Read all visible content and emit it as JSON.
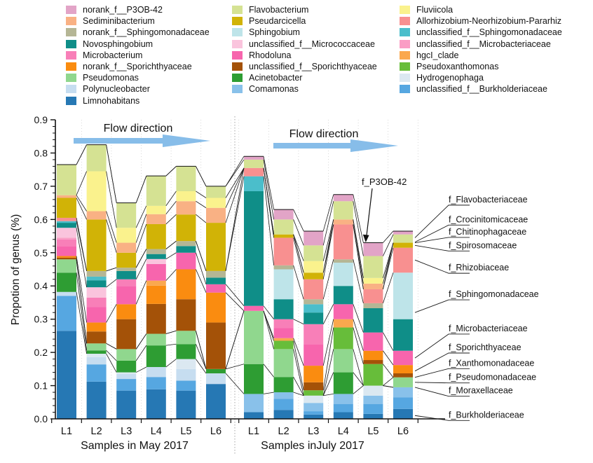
{
  "legend": {
    "columns": [
      {
        "items": [
          {
            "name": "norank_f__P3OB-42",
            "color": "#e2a4c7"
          },
          {
            "name": "Sediminibacterium",
            "color": "#f9b184"
          },
          {
            "name": "norank_f__Sphingomonadaceae",
            "color": "#b5b695"
          },
          {
            "name": "Novosphingobium",
            "color": "#0f8e88"
          },
          {
            "name": "Microbacterium",
            "color": "#f87fb8"
          },
          {
            "name": "norank_f__Sporichthyaceae",
            "color": "#fa8c10"
          },
          {
            "name": "Pseudomonas",
            "color": "#90d78e"
          },
          {
            "name": "Polynucleobacter",
            "color": "#c6ddf0"
          },
          {
            "name": "Limnohabitans",
            "color": "#2678b4"
          }
        ]
      },
      {
        "items": [
          {
            "name": "Flavobacterium",
            "color": "#d5e293"
          },
          {
            "name": "Pseudarcicella",
            "color": "#d1b306"
          },
          {
            "name": "Sphingobium",
            "color": "#bee4e9"
          },
          {
            "name": "unclassified_f__Micrococcaceae",
            "color": "#fac4dd"
          },
          {
            "name": "Rhodoluna",
            "color": "#f765ad"
          },
          {
            "name": "unclassified_f__Sporichthyaceae",
            "color": "#a45208"
          },
          {
            "name": "Acinetobacter",
            "color": "#2e9d33"
          },
          {
            "name": "Comamonas",
            "color": "#89c1ea"
          }
        ]
      },
      {
        "items": [
          {
            "name": "Fluviicola",
            "color": "#faf28d"
          },
          {
            "name": "Allorhizobium-Neorhizobium-Pararhiz",
            "color": "#f89090"
          },
          {
            "name": "unclassified_f__Sphingomonadaceae",
            "color": "#4bbecb"
          },
          {
            "name": "unclassified_f__Microbacteriaceae",
            "color": "#fa9dc5"
          },
          {
            "name": "hgcI_clade",
            "color": "#faa84e"
          },
          {
            "name": "Pseudoxanthomonas",
            "color": "#67bd3a"
          },
          {
            "name": "Hydrogenophaga",
            "color": "#dbe8f1"
          },
          {
            "name": "unclassified_f__Burkholderiaceae",
            "color": "#56a7e1"
          }
        ]
      }
    ]
  },
  "chart_data": {
    "type": "bar",
    "subtype": "stacked-vertical",
    "ylabel": "Propotion of genus (%)",
    "ylim": [
      0,
      0.9
    ],
    "ytick_step": 0.1,
    "ytick_labels": [
      "0.0",
      "0.1",
      "0.2",
      "0.3",
      "0.4",
      "0.5",
      "0.6",
      "0.7",
      "0.8",
      "0.9"
    ],
    "flow_label": "Flow direction",
    "annotation": {
      "text": "f_P3OB-42"
    },
    "groups": [
      {
        "caption": "Samples in May 2017",
        "categories": [
          "L1",
          "L2",
          "L3",
          "L4",
          "L5",
          "L6"
        ]
      },
      {
        "caption": "Samples inJuly 2017",
        "categories": [
          "L1",
          "L2",
          "L3",
          "L4",
          "L5",
          "L6"
        ]
      }
    ],
    "families": [
      {
        "name": "f_Burkholderiaceae",
        "genera": [
          "Limnohabitans",
          "unclassified_f__Burkholderiaceae",
          "Comamonas",
          "Polynucleobacter",
          "Hydrogenophaga"
        ]
      },
      {
        "name": "f_Moraxellaceae",
        "genera": [
          "Acinetobacter"
        ]
      },
      {
        "name": "f_Pseudomonadaceae",
        "genera": [
          "Pseudomonas"
        ]
      },
      {
        "name": "f_Xanthomonadaceae",
        "genera": [
          "Pseudoxanthomonas"
        ]
      },
      {
        "name": "f_Sporichthyaceae",
        "genera": [
          "unclassified_f__Sporichthyaceae",
          "norank_f__Sporichthyaceae",
          "hgcI_clade"
        ]
      },
      {
        "name": "f_Microbacteriaceae",
        "genera": [
          "Rhodoluna",
          "Microbacterium",
          "unclassified_f__Microbacteriaceae",
          "unclassified_f__Micrococcaceae"
        ]
      },
      {
        "name": "f_Sphingomonadaceae",
        "genera": [
          "Novosphingobium",
          "unclassified_f__Sphingomonadaceae",
          "Sphingobium",
          "norank_f__Sphingomonadaceae"
        ]
      },
      {
        "name": "f_Rhizobiaceae",
        "genera": [
          "Allorhizobium-Neorhizobium-Pararhiz"
        ]
      },
      {
        "name": "f_Spirosomaceae",
        "genera": [
          "Pseudarcicella"
        ]
      },
      {
        "name": "f_Chitinophagaceae",
        "genera": [
          "Sediminibacterium"
        ]
      },
      {
        "name": "f_Crocinitomicaceae",
        "genera": [
          "Fluviicola"
        ]
      },
      {
        "name": "f_Flavobacteriaceae",
        "genera": [
          "Flavobacterium"
        ]
      },
      {
        "name": "f_P3OB-42",
        "genera": [
          "norank_f__P3OB-42"
        ]
      }
    ],
    "genera_colors": {
      "Limnohabitans": "#2678b4",
      "unclassified_f__Burkholderiaceae": "#56a7e1",
      "Comamonas": "#89c1ea",
      "Polynucleobacter": "#c6ddf0",
      "Hydrogenophaga": "#dbe8f1",
      "Acinetobacter": "#2e9d33",
      "Pseudomonas": "#90d78e",
      "Pseudoxanthomonas": "#67bd3a",
      "unclassified_f__Sporichthyaceae": "#a45208",
      "norank_f__Sporichthyaceae": "#fa8c10",
      "hgcI_clade": "#faa84e",
      "Rhodoluna": "#f765ad",
      "Microbacterium": "#f87fb8",
      "unclassified_f__Microbacteriaceae": "#fa9dc5",
      "unclassified_f__Micrococcaceae": "#fac4dd",
      "Novosphingobium": "#0f8e88",
      "unclassified_f__Sphingomonadaceae": "#4bbecb",
      "Sphingobium": "#bee4e9",
      "norank_f__Sphingomonadaceae": "#b5b695",
      "Allorhizobium-Neorhizobium-Pararhiz": "#f89090",
      "Pseudarcicella": "#d1b306",
      "Sediminibacterium": "#f9b184",
      "Fluviicola": "#faf28d",
      "Flavobacterium": "#d5e293",
      "norank_f__P3OB-42": "#e2a4c7"
    },
    "bars": [
      {
        "group": 0,
        "sample": "L1",
        "segments": {
          "Limnohabitans": 0.265,
          "unclassified_f__Burkholderiaceae": 0.105,
          "Polynucleobacter": 0.012,
          "Acinetobacter": 0.058,
          "Pseudomonas": 0.04,
          "unclassified_f__Sporichthyaceae": 0.005,
          "norank_f__Sporichthyaceae": 0.005,
          "Rhodoluna": 0.03,
          "Microbacterium": 0.02,
          "unclassified_f__Microbacteriaceae": 0.005,
          "unclassified_f__Micrococcaceae": 0.03,
          "Novosphingobium": 0.015,
          "unclassified_f__Sphingomonadaceae": 0.005,
          "Allorhizobium-Neorhizobium-Pararhiz": 0.01,
          "Pseudarcicella": 0.06,
          "Sediminibacterium": 0.008,
          "Flavobacterium": 0.092
        }
      },
      {
        "group": 0,
        "sample": "L2",
        "segments": {
          "Limnohabitans": 0.112,
          "unclassified_f__Burkholderiaceae": 0.052,
          "Polynucleobacter": 0.022,
          "Hydrogenophaga": 0.01,
          "Acinetobacter": 0.01,
          "Pseudomonas": 0.021,
          "unclassified_f__Sporichthyaceae": 0.036,
          "norank_f__Sporichthyaceae": 0.027,
          "Rhodoluna": 0.047,
          "Microbacterium": 0.028,
          "unclassified_f__Micrococcaceae": 0.031,
          "Novosphingobium": 0.021,
          "unclassified_f__Sphingomonadaceae": 0.011,
          "norank_f__Sphingomonadaceae": 0.017,
          "Pseudarcicella": 0.155,
          "Sediminibacterium": 0.025,
          "Fluviicola": 0.12,
          "Flavobacterium": 0.08
        }
      },
      {
        "group": 0,
        "sample": "L3",
        "segments": {
          "Limnohabitans": 0.085,
          "unclassified_f__Burkholderiaceae": 0.035,
          "Polynucleobacter": 0.015,
          "Hydrogenophaga": 0.005,
          "Acinetobacter": 0.035,
          "Pseudomonas": 0.035,
          "unclassified_f__Sporichthyaceae": 0.09,
          "norank_f__Sporichthyaceae": 0.045,
          "Rhodoluna": 0.055,
          "Microbacterium": 0.02,
          "Novosphingobium": 0.025,
          "norank_f__Sphingomonadaceae": 0.01,
          "Pseudarcicella": 0.045,
          "Sediminibacterium": 0.03,
          "Fluviicola": 0.045,
          "Flavobacterium": 0.075
        }
      },
      {
        "group": 0,
        "sample": "L4",
        "segments": {
          "Limnohabitans": 0.089,
          "unclassified_f__Burkholderiaceae": 0.037,
          "Polynucleobacter": 0.03,
          "Acinetobacter": 0.065,
          "Pseudomonas": 0.035,
          "unclassified_f__Sporichthyaceae": 0.09,
          "norank_f__Sporichthyaceae": 0.055,
          "hgcI_clade": 0.015,
          "Rhodoluna": 0.05,
          "unclassified_f__Micrococcaceae": 0.015,
          "Novosphingobium": 0.015,
          "norank_f__Sphingomonadaceae": 0.015,
          "Pseudarcicella": 0.075,
          "Sediminibacterium": 0.03,
          "Fluviicola": 0.025,
          "Flavobacterium": 0.09
        }
      },
      {
        "group": 0,
        "sample": "L5",
        "segments": {
          "Limnohabitans": 0.085,
          "unclassified_f__Burkholderiaceae": 0.03,
          "Polynucleobacter": 0.035,
          "Hydrogenophaga": 0.03,
          "Acinetobacter": 0.045,
          "Pseudomonas": 0.04,
          "unclassified_f__Sporichthyaceae": 0.095,
          "norank_f__Sporichthyaceae": 0.09,
          "Rhodoluna": 0.05,
          "Novosphingobium": 0.02,
          "norank_f__Sphingomonadaceae": 0.015,
          "Pseudarcicella": 0.08,
          "Sediminibacterium": 0.04,
          "Fluviicola": 0.03,
          "Flavobacterium": 0.075
        }
      },
      {
        "group": 0,
        "sample": "L6",
        "segments": {
          "Limnohabitans": 0.105,
          "Polynucleobacter": 0.032,
          "Acinetobacter": 0.013,
          "unclassified_f__Sporichthyaceae": 0.14,
          "norank_f__Sporichthyaceae": 0.09,
          "Rhodoluna": 0.025,
          "Novosphingobium": 0.02,
          "norank_f__Sphingomonadaceae": 0.02,
          "Pseudarcicella": 0.145,
          "Sediminibacterium": 0.045,
          "Fluviicola": 0.03,
          "Flavobacterium": 0.035
        }
      },
      {
        "group": 1,
        "sample": "L1",
        "segments": {
          "Limnohabitans": 0.02,
          "Comamonas": 0.055,
          "Acinetobacter": 0.09,
          "Pseudomonas": 0.16,
          "Rhodoluna": 0.015,
          "Novosphingobium": 0.345,
          "unclassified_f__Sphingomonadaceae": 0.045,
          "Allorhizobium-Neorhizobium-Pararhiz": 0.025,
          "Flavobacterium": 0.025,
          "norank_f__P3OB-42": 0.01
        }
      },
      {
        "group": 1,
        "sample": "L2",
        "segments": {
          "Limnohabitans": 0.027,
          "unclassified_f__Burkholderiaceae": 0.033,
          "Comamonas": 0.02,
          "Acinetobacter": 0.046,
          "Pseudomonas": 0.084,
          "Pseudoxanthomonas": 0.025,
          "hgcI_clade": 0.008,
          "Rhodoluna": 0.03,
          "Microbacterium": 0.027,
          "Novosphingobium": 0.06,
          "Sphingobium": 0.09,
          "norank_f__Sphingomonadaceae": 0.012,
          "Allorhizobium-Neorhizobium-Pararhiz": 0.083,
          "Pseudarcicella": 0.01,
          "Flavobacterium": 0.045,
          "norank_f__P3OB-42": 0.03
        }
      },
      {
        "group": 1,
        "sample": "L3",
        "segments": {
          "Limnohabitans": 0.013,
          "unclassified_f__Burkholderiaceae": 0.01,
          "Comamonas": 0.025,
          "Hydrogenophaga": 0.022,
          "Pseudoxanthomonas": 0.016,
          "unclassified_f__Sporichthyaceae": 0.024,
          "norank_f__Sporichthyaceae": 0.05,
          "Rhodoluna": 0.065,
          "Microbacterium": 0.06,
          "Novosphingobium": 0.035,
          "unclassified_f__Sphingomonadaceae": 0.025,
          "norank_f__Sphingomonadaceae": 0.015,
          "Allorhizobium-Neorhizobium-Pararhiz": 0.06,
          "Pseudarcicella": 0.02,
          "Fluviicola": 0.035,
          "Flavobacterium": 0.047,
          "norank_f__P3OB-42": 0.043
        }
      },
      {
        "group": 1,
        "sample": "L4",
        "segments": {
          "Limnohabitans": 0.02,
          "unclassified_f__Burkholderiaceae": 0.025,
          "Comamonas": 0.03,
          "Acinetobacter": 0.065,
          "Pseudomonas": 0.07,
          "Pseudoxanthomonas": 0.065,
          "hgcI_clade": 0.025,
          "Rhodoluna": 0.045,
          "Novosphingobium": 0.055,
          "Sphingobium": 0.07,
          "norank_f__Sphingomonadaceae": 0.01,
          "Allorhizobium-Neorhizobium-Pararhiz": 0.105,
          "Sediminibacterium": 0.015,
          "Flavobacterium": 0.055,
          "norank_f__P3OB-42": 0.02
        }
      },
      {
        "group": 1,
        "sample": "L5",
        "segments": {
          "Limnohabitans": 0.015,
          "unclassified_f__Burkholderiaceae": 0.03,
          "Comamonas": 0.025,
          "Hydrogenophaga": 0.03,
          "Pseudoxanthomonas": 0.065,
          "unclassified_f__Sporichthyaceae": 0.012,
          "norank_f__Sporichthyaceae": 0.028,
          "Rhodoluna": 0.055,
          "Novosphingobium": 0.073,
          "norank_f__Sphingomonadaceae": 0.015,
          "Allorhizobium-Neorhizobium-Pararhiz": 0.042,
          "Sediminibacterium": 0.017,
          "Fluviicola": 0.017,
          "Flavobacterium": 0.066,
          "norank_f__P3OB-42": 0.04
        }
      },
      {
        "group": 1,
        "sample": "L6",
        "segments": {
          "Limnohabitans": 0.03,
          "unclassified_f__Burkholderiaceae": 0.035,
          "Comamonas": 0.03,
          "Pseudomonas": 0.03,
          "unclassified_f__Sporichthyaceae": 0.012,
          "norank_f__Sporichthyaceae": 0.025,
          "Rhodoluna": 0.043,
          "Novosphingobium": 0.095,
          "Sphingobium": 0.14,
          "Allorhizobium-Neorhizobium-Pararhiz": 0.075,
          "Pseudarcicella": 0.015,
          "Flavobacterium": 0.025,
          "norank_f__P3OB-42": 0.01
        }
      }
    ],
    "right_labels": [
      {
        "label": "f_Flavobacteriaceae",
        "y": 0.66,
        "attach": 0.545
      },
      {
        "label": "f_Crocinitomicaceae",
        "y": 0.6,
        "attach": 0.532
      },
      {
        "label": "f_Chitinophagaceae",
        "y": 0.563,
        "attach": 0.53
      },
      {
        "label": "f_Spirosomaceae",
        "y": 0.522,
        "attach": 0.522
      },
      {
        "label": "f_Rhizobiaceae",
        "y": 0.455,
        "attach": 0.478
      },
      {
        "label": "f_Sphingomonadaceae",
        "y": 0.375,
        "attach": 0.32
      },
      {
        "label": "f_Microbacteriaceae",
        "y": 0.272,
        "attach": 0.183
      },
      {
        "label": "f_Sporichthyaceae",
        "y": 0.215,
        "attach": 0.144
      },
      {
        "label": "f_Xanthomonadaceae",
        "y": 0.168,
        "attach": 0.125
      },
      {
        "label": "f_Pseudomonadaceae",
        "y": 0.125,
        "attach": 0.11
      },
      {
        "label": "f_Moraxellaceae",
        "y": 0.085,
        "attach": 0.095
      },
      {
        "label": "f_Burkholderiaceae",
        "y": 0.012,
        "attach": 0.01
      }
    ],
    "arrow_color": "#87bde9"
  }
}
